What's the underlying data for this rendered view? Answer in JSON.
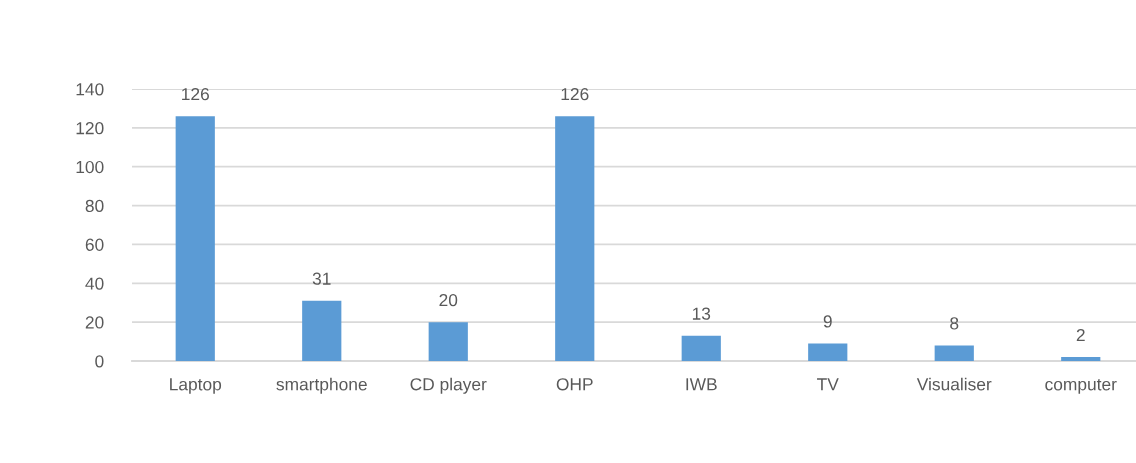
{
  "chart_data": {
    "type": "bar",
    "categories": [
      "Laptop",
      "smartphone",
      "CD player",
      "OHP",
      "IWB",
      "TV",
      "Visualiser",
      "computer"
    ],
    "values": [
      126,
      31,
      20,
      126,
      13,
      9,
      8,
      2
    ],
    "color": "#5b9bd5",
    "ylim": [
      0,
      140
    ],
    "yticks": [
      0,
      20,
      40,
      60,
      80,
      100,
      120,
      140
    ],
    "grid": "y",
    "data_labels": true,
    "legend": false
  }
}
